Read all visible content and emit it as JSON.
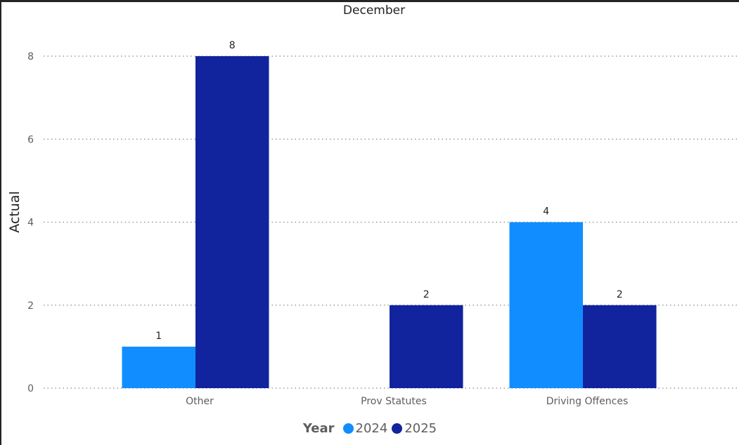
{
  "chart_data": {
    "type": "bar",
    "title": "December",
    "ylabel": "Actual",
    "xlabel": "",
    "categories": [
      "Other",
      "Prov Statutes",
      "Driving Offences"
    ],
    "series": [
      {
        "name": "2024",
        "values": [
          1,
          null,
          4
        ],
        "color": "#118DFF"
      },
      {
        "name": "2025",
        "values": [
          8,
          2,
          2
        ],
        "color": "#12239E"
      }
    ],
    "ylim": [
      0,
      8
    ],
    "yticks": [
      0,
      2,
      4,
      6,
      8
    ],
    "grid": true,
    "legend_title": "Year",
    "legend_position": "bottom-center"
  }
}
